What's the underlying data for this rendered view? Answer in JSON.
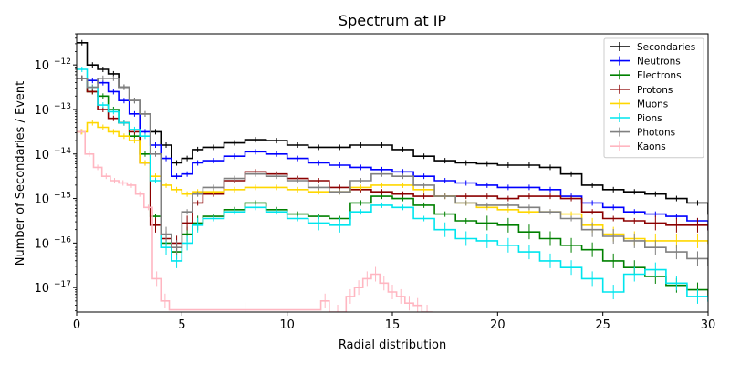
{
  "chart_data": {
    "type": "line",
    "title": "Spectrum at IP",
    "xlabel": "Radial distribution",
    "ylabel": "Number of Secondaries / Event",
    "xlim": [
      0,
      30
    ],
    "ylim_log10": [
      -17.55,
      -11.3
    ],
    "yscale": "log",
    "grid": false,
    "legend_position": "top-right",
    "x_ticks": [
      0,
      5,
      10,
      15,
      20,
      25,
      30
    ],
    "y_ticks": [
      {
        "exp": -12,
        "label": "10",
        "sup": "−12"
      },
      {
        "exp": -13,
        "label": "10",
        "sup": "−13"
      },
      {
        "exp": -14,
        "label": "10",
        "sup": "−14"
      },
      {
        "exp": -15,
        "label": "10",
        "sup": "−15"
      },
      {
        "exp": -16,
        "label": "10",
        "sup": "−16"
      },
      {
        "exp": -17,
        "label": "10",
        "sup": "−17"
      }
    ],
    "series": [
      {
        "name": "Secondaries",
        "color": "#000000",
        "points": [
          [
            0,
            -11.5
          ],
          [
            0.5,
            -12.0
          ],
          [
            1.0,
            -12.1
          ],
          [
            1.5,
            -12.2
          ],
          [
            2.0,
            -12.5
          ],
          [
            2.5,
            -12.8
          ],
          [
            3.0,
            -13.1
          ],
          [
            3.5,
            -13.5
          ],
          [
            4.0,
            -13.8
          ],
          [
            4.5,
            -14.2
          ],
          [
            5.0,
            -14.1
          ],
          [
            5.5,
            -13.9
          ],
          [
            6.0,
            -13.85
          ],
          [
            7.0,
            -13.75
          ],
          [
            8.0,
            -13.68
          ],
          [
            9.0,
            -13.7
          ],
          [
            10.0,
            -13.8
          ],
          [
            11.0,
            -13.85
          ],
          [
            12.0,
            -13.85
          ],
          [
            13.0,
            -13.8
          ],
          [
            14.0,
            -13.8
          ],
          [
            15.0,
            -13.9
          ],
          [
            16.0,
            -14.05
          ],
          [
            17.0,
            -14.15
          ],
          [
            18.0,
            -14.2
          ],
          [
            19.0,
            -14.22
          ],
          [
            20.0,
            -14.25
          ],
          [
            21.0,
            -14.25
          ],
          [
            22.0,
            -14.3
          ],
          [
            23.0,
            -14.45
          ],
          [
            24.0,
            -14.7
          ],
          [
            25.0,
            -14.8
          ],
          [
            26.0,
            -14.85
          ],
          [
            27.0,
            -14.9
          ],
          [
            28.0,
            -15.0
          ],
          [
            29.0,
            -15.1
          ],
          [
            30.0,
            -15.35
          ]
        ]
      },
      {
        "name": "Neutrons",
        "color": "#0000ff",
        "points": [
          [
            0,
            -12.3
          ],
          [
            0.5,
            -12.35
          ],
          [
            1.0,
            -12.4
          ],
          [
            1.5,
            -12.6
          ],
          [
            2.0,
            -12.8
          ],
          [
            2.5,
            -13.1
          ],
          [
            3.0,
            -13.5
          ],
          [
            3.5,
            -13.8
          ],
          [
            4.0,
            -14.1
          ],
          [
            4.5,
            -14.5
          ],
          [
            5.0,
            -14.45
          ],
          [
            5.5,
            -14.2
          ],
          [
            6.0,
            -14.15
          ],
          [
            7.0,
            -14.05
          ],
          [
            8.0,
            -13.95
          ],
          [
            9.0,
            -14.0
          ],
          [
            10.0,
            -14.1
          ],
          [
            11.0,
            -14.2
          ],
          [
            12.0,
            -14.25
          ],
          [
            13.0,
            -14.3
          ],
          [
            14.0,
            -14.35
          ],
          [
            15.0,
            -14.4
          ],
          [
            16.0,
            -14.5
          ],
          [
            17.0,
            -14.6
          ],
          [
            18.0,
            -14.65
          ],
          [
            19.0,
            -14.7
          ],
          [
            20.0,
            -14.75
          ],
          [
            21.0,
            -14.75
          ],
          [
            22.0,
            -14.8
          ],
          [
            23.0,
            -14.95
          ],
          [
            24.0,
            -15.1
          ],
          [
            25.0,
            -15.2
          ],
          [
            26.0,
            -15.3
          ],
          [
            27.0,
            -15.35
          ],
          [
            28.0,
            -15.4
          ],
          [
            29.0,
            -15.5
          ],
          [
            30.0,
            -15.7
          ]
        ]
      },
      {
        "name": "Electrons",
        "color": "#008000",
        "points": [
          [
            0,
            -12.3
          ],
          [
            0.5,
            -12.6
          ],
          [
            1.0,
            -12.7
          ],
          [
            1.5,
            -13.0
          ],
          [
            2.0,
            -13.3
          ],
          [
            2.5,
            -13.6
          ],
          [
            3.0,
            -14.0
          ],
          [
            3.5,
            -15.4
          ],
          [
            4.0,
            -16.0
          ],
          [
            4.5,
            -16.2
          ],
          [
            5.0,
            -15.8
          ],
          [
            5.5,
            -15.55
          ],
          [
            6.0,
            -15.4
          ],
          [
            7.0,
            -15.25
          ],
          [
            8.0,
            -15.1
          ],
          [
            9.0,
            -15.25
          ],
          [
            10.0,
            -15.35
          ],
          [
            11.0,
            -15.4
          ],
          [
            12.0,
            -15.45
          ],
          [
            13.0,
            -15.1
          ],
          [
            14.0,
            -14.95
          ],
          [
            15.0,
            -15.0
          ],
          [
            16.0,
            -15.15
          ],
          [
            17.0,
            -15.35
          ],
          [
            18.0,
            -15.5
          ],
          [
            19.0,
            -15.55
          ],
          [
            20.0,
            -15.6
          ],
          [
            21.0,
            -15.75
          ],
          [
            22.0,
            -15.9
          ],
          [
            23.0,
            -16.05
          ],
          [
            24.0,
            -16.15
          ],
          [
            25.0,
            -16.4
          ],
          [
            26.0,
            -16.55
          ],
          [
            27.0,
            -16.75
          ],
          [
            28.0,
            -16.95
          ],
          [
            29.0,
            -17.05
          ],
          [
            30.0,
            -17.2
          ]
        ]
      },
      {
        "name": "Protons",
        "color": "#8b0000",
        "points": [
          [
            0,
            -12.3
          ],
          [
            0.5,
            -12.6
          ],
          [
            1.0,
            -13.0
          ],
          [
            1.5,
            -13.2
          ],
          [
            2.0,
            -13.3
          ],
          [
            2.5,
            -13.5
          ],
          [
            3.0,
            -14.2
          ],
          [
            3.5,
            -15.6
          ],
          [
            4.0,
            -15.9
          ],
          [
            4.5,
            -16.0
          ],
          [
            5.0,
            -15.55
          ],
          [
            5.5,
            -15.1
          ],
          [
            6.0,
            -14.9
          ],
          [
            7.0,
            -14.6
          ],
          [
            8.0,
            -14.4
          ],
          [
            9.0,
            -14.45
          ],
          [
            10.0,
            -14.55
          ],
          [
            11.0,
            -14.6
          ],
          [
            12.0,
            -14.75
          ],
          [
            13.0,
            -14.8
          ],
          [
            14.0,
            -14.85
          ],
          [
            15.0,
            -14.9
          ],
          [
            16.0,
            -14.95
          ],
          [
            17.0,
            -14.95
          ],
          [
            18.0,
            -14.95
          ],
          [
            19.0,
            -14.95
          ],
          [
            20.0,
            -15.0
          ],
          [
            21.0,
            -14.95
          ],
          [
            22.0,
            -14.95
          ],
          [
            23.0,
            -15.0
          ],
          [
            24.0,
            -15.3
          ],
          [
            25.0,
            -15.45
          ],
          [
            26.0,
            -15.5
          ],
          [
            27.0,
            -15.55
          ],
          [
            28.0,
            -15.6
          ],
          [
            29.0,
            -15.6
          ],
          [
            30.0,
            -15.7
          ]
        ]
      },
      {
        "name": "Muons",
        "color": "#ffd700",
        "points": [
          [
            0,
            -13.5
          ],
          [
            0.5,
            -13.3
          ],
          [
            1.0,
            -13.4
          ],
          [
            1.5,
            -13.5
          ],
          [
            2.0,
            -13.6
          ],
          [
            2.5,
            -13.7
          ],
          [
            3.0,
            -14.2
          ],
          [
            3.5,
            -14.5
          ],
          [
            4.0,
            -14.7
          ],
          [
            4.5,
            -14.8
          ],
          [
            5.0,
            -14.9
          ],
          [
            5.5,
            -14.85
          ],
          [
            6.0,
            -14.85
          ],
          [
            7.0,
            -14.8
          ],
          [
            8.0,
            -14.75
          ],
          [
            9.0,
            -14.75
          ],
          [
            10.0,
            -14.8
          ],
          [
            11.0,
            -14.85
          ],
          [
            12.0,
            -14.85
          ],
          [
            13.0,
            -14.75
          ],
          [
            14.0,
            -14.7
          ],
          [
            15.0,
            -14.7
          ],
          [
            16.0,
            -14.8
          ],
          [
            17.0,
            -14.95
          ],
          [
            18.0,
            -15.1
          ],
          [
            19.0,
            -15.2
          ],
          [
            20.0,
            -15.25
          ],
          [
            21.0,
            -15.3
          ],
          [
            22.0,
            -15.3
          ],
          [
            23.0,
            -15.35
          ],
          [
            24.0,
            -15.6
          ],
          [
            25.0,
            -15.8
          ],
          [
            26.0,
            -15.9
          ],
          [
            27.0,
            -15.95
          ],
          [
            28.0,
            -15.95
          ],
          [
            29.0,
            -15.95
          ],
          [
            30.0,
            -16.0
          ]
        ]
      },
      {
        "name": "Pions",
        "color": "#00e5ee",
        "points": [
          [
            0,
            -12.1
          ],
          [
            0.5,
            -12.5
          ],
          [
            1.0,
            -12.9
          ],
          [
            1.5,
            -13.05
          ],
          [
            2.0,
            -13.3
          ],
          [
            2.5,
            -13.45
          ],
          [
            3.0,
            -13.6
          ],
          [
            3.5,
            -14.6
          ],
          [
            4.0,
            -16.1
          ],
          [
            4.5,
            -16.4
          ],
          [
            5.0,
            -16.0
          ],
          [
            5.5,
            -15.6
          ],
          [
            6.0,
            -15.45
          ],
          [
            7.0,
            -15.3
          ],
          [
            8.0,
            -15.2
          ],
          [
            9.0,
            -15.3
          ],
          [
            10.0,
            -15.45
          ],
          [
            11.0,
            -15.55
          ],
          [
            12.0,
            -15.6
          ],
          [
            13.0,
            -15.3
          ],
          [
            14.0,
            -15.15
          ],
          [
            15.0,
            -15.2
          ],
          [
            16.0,
            -15.45
          ],
          [
            17.0,
            -15.7
          ],
          [
            18.0,
            -15.9
          ],
          [
            19.0,
            -15.95
          ],
          [
            20.0,
            -16.05
          ],
          [
            21.0,
            -16.2
          ],
          [
            22.0,
            -16.4
          ],
          [
            23.0,
            -16.55
          ],
          [
            24.0,
            -16.8
          ],
          [
            25.0,
            -17.1
          ],
          [
            26.0,
            -16.7
          ],
          [
            27.0,
            -16.6
          ],
          [
            28.0,
            -16.9
          ],
          [
            29.0,
            -17.2
          ],
          [
            30.0,
            -17.3
          ]
        ]
      },
      {
        "name": "Photons",
        "color": "#808080",
        "points": [
          [
            0,
            -12.3
          ],
          [
            0.5,
            -12.5
          ],
          [
            1.0,
            -12.3
          ],
          [
            1.5,
            -12.3
          ],
          [
            2.0,
            -12.5
          ],
          [
            2.5,
            -12.8
          ],
          [
            3.0,
            -13.1
          ],
          [
            3.5,
            -14.0
          ],
          [
            4.0,
            -15.8
          ],
          [
            4.5,
            -16.1
          ],
          [
            5.0,
            -15.3
          ],
          [
            5.5,
            -14.9
          ],
          [
            6.0,
            -14.75
          ],
          [
            7.0,
            -14.55
          ],
          [
            8.0,
            -14.45
          ],
          [
            9.0,
            -14.5
          ],
          [
            10.0,
            -14.6
          ],
          [
            11.0,
            -14.75
          ],
          [
            12.0,
            -14.85
          ],
          [
            13.0,
            -14.6
          ],
          [
            14.0,
            -14.45
          ],
          [
            15.0,
            -14.5
          ],
          [
            16.0,
            -14.7
          ],
          [
            17.0,
            -14.95
          ],
          [
            18.0,
            -15.1
          ],
          [
            19.0,
            -15.15
          ],
          [
            20.0,
            -15.15
          ],
          [
            21.0,
            -15.2
          ],
          [
            22.0,
            -15.3
          ],
          [
            23.0,
            -15.45
          ],
          [
            24.0,
            -15.7
          ],
          [
            25.0,
            -15.85
          ],
          [
            26.0,
            -15.95
          ],
          [
            27.0,
            -16.1
          ],
          [
            28.0,
            -16.2
          ],
          [
            29.0,
            -16.35
          ],
          [
            30.0,
            -16.5
          ]
        ]
      },
      {
        "name": "Kaons",
        "color": "#ffb6c1",
        "points": [
          [
            0,
            -13.5
          ],
          [
            0.4,
            -14.0
          ],
          [
            0.8,
            -14.3
          ],
          [
            1.2,
            -14.5
          ],
          [
            1.6,
            -14.6
          ],
          [
            2.0,
            -14.65
          ],
          [
            2.4,
            -14.7
          ],
          [
            2.8,
            -14.9
          ],
          [
            3.2,
            -15.2
          ],
          [
            3.6,
            -16.8
          ],
          [
            4.0,
            -17.3
          ],
          [
            4.4,
            -17.5
          ],
          [
            11.6,
            -17.3
          ],
          [
            12.0,
            -17.55
          ],
          [
            12.8,
            -17.2
          ],
          [
            13.2,
            -17.0
          ],
          [
            13.6,
            -16.8
          ],
          [
            14.0,
            -16.7
          ],
          [
            14.4,
            -16.9
          ],
          [
            14.8,
            -17.1
          ],
          [
            15.2,
            -17.2
          ],
          [
            15.6,
            -17.35
          ],
          [
            16.0,
            -17.4
          ],
          [
            16.4,
            -17.55
          ]
        ]
      }
    ]
  }
}
